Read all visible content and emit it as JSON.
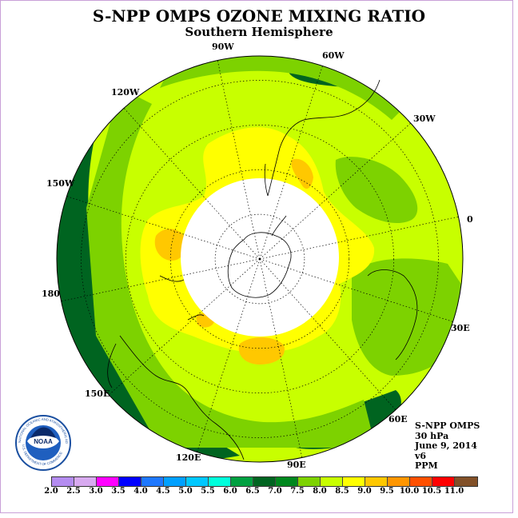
{
  "title": "S-NPP OMPS OZONE MIXING RATIO",
  "subtitle": "Southern Hemisphere",
  "longitude_labels": {
    "lon_90w": "90W",
    "lon_60w": "60W",
    "lon_30w": "30W",
    "lon_0": "0",
    "lon_30e": "30E",
    "lon_60e": "60E",
    "lon_90e": "90E",
    "lon_120e": "120E",
    "lon_150e": "150E",
    "lon_180": "180",
    "lon_150w": "150W",
    "lon_120w": "120W"
  },
  "info": {
    "instrument": "S-NPP OMPS",
    "pressure": "30 hPa",
    "date": "June 9, 2014",
    "version": "v6",
    "units": "PPM"
  },
  "colorbar": {
    "ticks": [
      "2.0",
      "2.5",
      "3.0",
      "3.5",
      "4.0",
      "4.5",
      "5.0",
      "5.5",
      "6.0",
      "6.5",
      "7.0",
      "7.5",
      "8.0",
      "8.5",
      "9.0",
      "9.5",
      "10.0",
      "10.5",
      "11.0"
    ],
    "colors": [
      "#b48cf0",
      "#d8aaf0",
      "#ff00ff",
      "#0000ff",
      "#1e78ff",
      "#00a0ff",
      "#00c8ff",
      "#00ffdc",
      "#00a040",
      "#006420",
      "#00881e",
      "#7dd200",
      "#c8ff00",
      "#ffff00",
      "#ffc800",
      "#ff9600",
      "#ff5000",
      "#ff0000",
      "#825028"
    ]
  },
  "map_colors": {
    "band_dark_green": "#006420",
    "band_green": "#7dd200",
    "band_yellow_green": "#c8ff00",
    "band_yellow": "#ffff00",
    "band_orange": "#ffc800"
  },
  "logo": {
    "name": "NOAA",
    "ring_text": "NATIONAL OCEANIC AND ATMOSPHERIC ADMINISTRATION",
    "ring_text_bottom": "U.S. DEPARTMENT OF COMMERCE"
  }
}
